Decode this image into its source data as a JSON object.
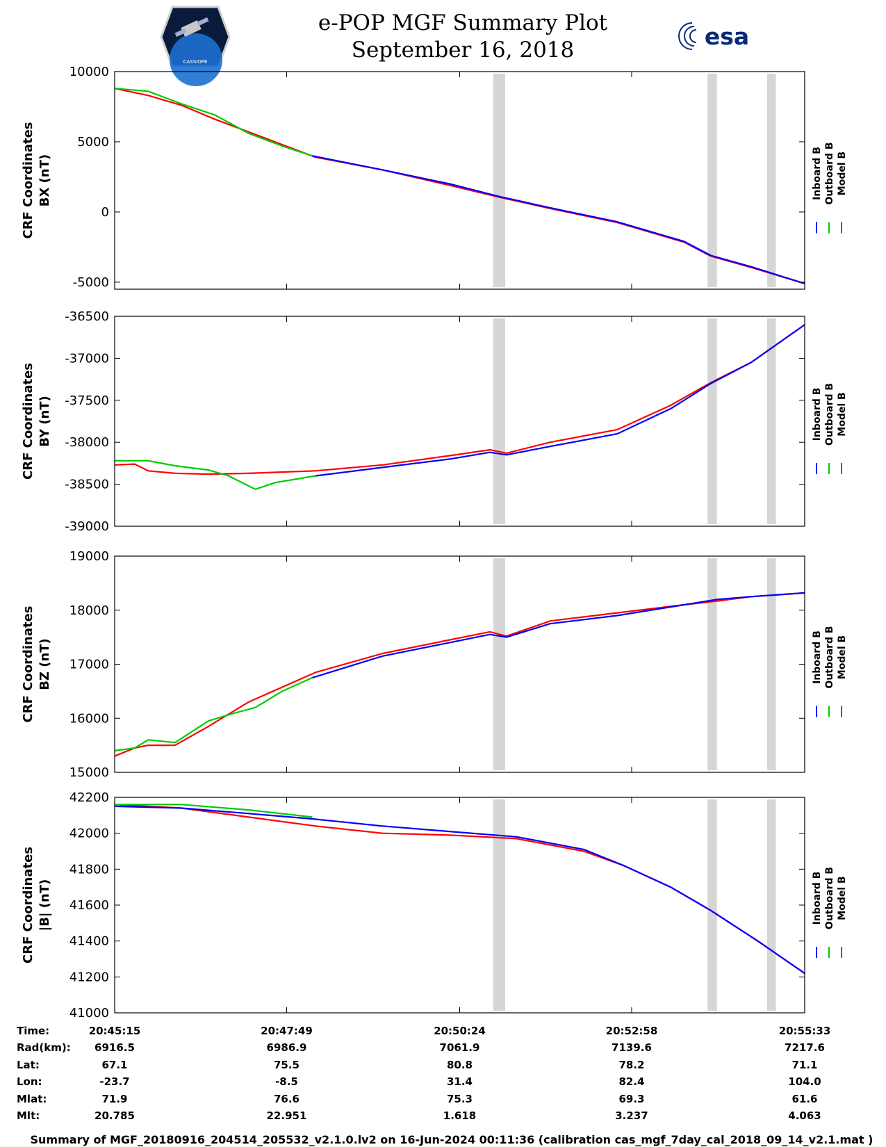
{
  "header": {
    "title": "e-POP MGF Summary Plot",
    "date": "September 16, 2018",
    "esa_logo_text": "esa",
    "mission_logo_text": "CASSIOPE"
  },
  "colors": {
    "inboard": "#0000ff",
    "outboard": "#00cc00",
    "model": "#ff0000",
    "gap": "#d6d6d6"
  },
  "legend": [
    "Inboard B",
    "Outboard B",
    "Model B"
  ],
  "chart_data": [
    {
      "type": "line",
      "ylabel": [
        "CRF Coordinates",
        "BX (nT)"
      ],
      "ylim": [
        -5500,
        10000
      ],
      "yticks": [
        10000,
        5000,
        0,
        -5000
      ],
      "x_range_minutes": [
        0,
        10.3
      ],
      "gaps_minutes": [
        [
          5.65,
          5.83
        ],
        [
          8.85,
          8.99
        ],
        [
          9.74,
          9.87
        ]
      ],
      "series": [
        {
          "name": "Inboard B",
          "x": [
            2.95,
            4.0,
            5.0,
            5.74,
            6.5,
            7.5,
            8.5,
            8.9,
            9.5,
            10.3
          ],
          "values": [
            4000,
            3000,
            2000,
            1100,
            300,
            -700,
            -2100,
            -3100,
            -3900,
            -5100
          ]
        },
        {
          "name": "Outboard B",
          "x": [
            0,
            0.5,
            1.0,
            1.5,
            2.0,
            2.5,
            2.95
          ],
          "values": [
            8800,
            8600,
            7700,
            6900,
            5600,
            4700,
            4000
          ]
        },
        {
          "name": "Model B",
          "x": [
            0,
            0.5,
            1.0,
            1.5,
            2.0,
            2.5,
            3.0,
            4.0,
            5.0,
            5.74,
            6.5,
            7.5,
            8.5,
            8.9,
            9.5,
            10.3
          ],
          "values": [
            8800,
            8300,
            7600,
            6600,
            5700,
            4800,
            3900,
            3000,
            1900,
            1050,
            250,
            -750,
            -2150,
            -3150,
            -3950,
            -5100
          ]
        }
      ]
    },
    {
      "type": "line",
      "ylabel": [
        "CRF Coordinates",
        "BY (nT)"
      ],
      "ylim": [
        -39000,
        -36500
      ],
      "yticks": [
        -36500,
        -37000,
        -37500,
        -38000,
        -38500,
        -39000
      ],
      "x_range_minutes": [
        0,
        10.3
      ],
      "gaps_minutes": [
        [
          5.65,
          5.83
        ],
        [
          8.85,
          8.99
        ],
        [
          9.74,
          9.87
        ]
      ],
      "series": [
        {
          "name": "Inboard B",
          "x": [
            3.0,
            4.0,
            5.0,
            5.6,
            5.85,
            6.5,
            7.5,
            8.3,
            8.9,
            9.5,
            10.3
          ],
          "values": [
            -38400,
            -38300,
            -38200,
            -38120,
            -38150,
            -38050,
            -37900,
            -37600,
            -37300,
            -37050,
            -36600
          ]
        },
        {
          "name": "Outboard B",
          "x": [
            0,
            0.3,
            0.5,
            0.9,
            1.4,
            1.7,
            1.95,
            2.1,
            2.4,
            3.0
          ],
          "values": [
            -38220,
            -38220,
            -38220,
            -38280,
            -38330,
            -38400,
            -38500,
            -38560,
            -38480,
            -38400
          ]
        },
        {
          "name": "Model B",
          "x": [
            0,
            0.3,
            0.5,
            0.9,
            1.4,
            2.0,
            3.0,
            4.0,
            5.0,
            5.6,
            5.85,
            6.5,
            7.5,
            8.3,
            8.9,
            9.5,
            10.3
          ],
          "values": [
            -38270,
            -38260,
            -38340,
            -38370,
            -38380,
            -38370,
            -38340,
            -38270,
            -38160,
            -38090,
            -38130,
            -38000,
            -37850,
            -37560,
            -37290,
            -37050,
            -36600
          ]
        }
      ]
    },
    {
      "type": "line",
      "ylabel": [
        "CRF Coordinates",
        "BZ (nT)"
      ],
      "ylim": [
        15000,
        19000
      ],
      "yticks": [
        19000,
        18000,
        17000,
        16000,
        15000
      ],
      "x_range_minutes": [
        0,
        10.3
      ],
      "gaps_minutes": [
        [
          5.65,
          5.83
        ],
        [
          8.85,
          8.99
        ],
        [
          9.74,
          9.87
        ]
      ],
      "series": [
        {
          "name": "Inboard B",
          "x": [
            2.95,
            4.0,
            5.0,
            5.6,
            5.85,
            6.5,
            7.5,
            8.5,
            9.0,
            9.5,
            10.3
          ],
          "values": [
            16750,
            17150,
            17400,
            17550,
            17500,
            17750,
            17900,
            18100,
            18200,
            18250,
            18320
          ]
        },
        {
          "name": "Outboard B",
          "x": [
            0,
            0.3,
            0.5,
            0.9,
            1.4,
            1.8,
            2.1,
            2.5,
            2.95
          ],
          "values": [
            15400,
            15450,
            15600,
            15550,
            15950,
            16100,
            16200,
            16500,
            16750
          ]
        },
        {
          "name": "Model B",
          "x": [
            0,
            0.3,
            0.5,
            0.9,
            1.4,
            2.0,
            3.0,
            4.0,
            5.0,
            5.6,
            5.85,
            6.5,
            7.5,
            8.5,
            9.0,
            9.5,
            10.3
          ],
          "values": [
            15300,
            15450,
            15500,
            15500,
            15850,
            16300,
            16850,
            17200,
            17450,
            17600,
            17520,
            17800,
            17950,
            18100,
            18170,
            18250,
            18320
          ]
        }
      ]
    },
    {
      "type": "line",
      "ylabel": [
        "CRF Coordinates",
        "|B| (nT)"
      ],
      "ylim": [
        41000,
        42200
      ],
      "yticks": [
        42200,
        42000,
        41800,
        41600,
        41400,
        41200,
        41000
      ],
      "x_range_minutes": [
        0,
        10.3
      ],
      "gaps_minutes": [
        [
          5.65,
          5.83
        ],
        [
          8.85,
          8.99
        ],
        [
          9.74,
          9.87
        ]
      ],
      "series": [
        {
          "name": "Inboard B",
          "x": [
            0,
            1.0,
            2.0,
            2.95,
            4.0,
            5.0,
            6.0,
            7.0,
            7.6,
            8.3,
            8.9,
            9.6,
            10.3
          ],
          "values": [
            42150,
            42140,
            42110,
            42080,
            42040,
            42010,
            41980,
            41910,
            41820,
            41700,
            41570,
            41400,
            41220
          ]
        },
        {
          "name": "Outboard B",
          "x": [
            0,
            1.0,
            2.0,
            2.95
          ],
          "values": [
            42160,
            42160,
            42130,
            42090
          ]
        },
        {
          "name": "Model B",
          "x": [
            0,
            1.0,
            2.0,
            3.0,
            4.0,
            5.0,
            6.0,
            7.0,
            7.6,
            8.3,
            8.9,
            9.6,
            10.3
          ],
          "values": [
            42160,
            42140,
            42090,
            42040,
            42000,
            41990,
            41970,
            41900,
            41820,
            41700,
            41570,
            41400,
            41220
          ]
        }
      ]
    }
  ],
  "x_ticks_minutes": [
    0,
    2.567,
    5.15,
    7.717,
    10.3
  ],
  "table": {
    "row_labels": [
      "Time:",
      "Rad(km):",
      "Lat:",
      "Lon:",
      "Mlat:",
      "Mlt:"
    ],
    "columns": [
      [
        "20:45:15",
        "6916.5",
        "67.1",
        "-23.7",
        "71.9",
        "20.785"
      ],
      [
        "20:47:49",
        "6986.9",
        "75.5",
        "-8.5",
        "76.6",
        "22.951"
      ],
      [
        "20:50:24",
        "7061.9",
        "80.8",
        "31.4",
        "75.3",
        "1.618"
      ],
      [
        "20:52:58",
        "7139.6",
        "78.2",
        "82.4",
        "69.3",
        "3.237"
      ],
      [
        "20:55:33",
        "7217.6",
        "71.1",
        "104.0",
        "61.6",
        "4.063"
      ]
    ]
  },
  "footer": "Summary of MGF_20180916_204514_205532_v2.1.0.lv2 on 16-Jun-2024 00:11:36 (calibration cas_mgf_7day_cal_2018_09_14_v2.1.mat )"
}
